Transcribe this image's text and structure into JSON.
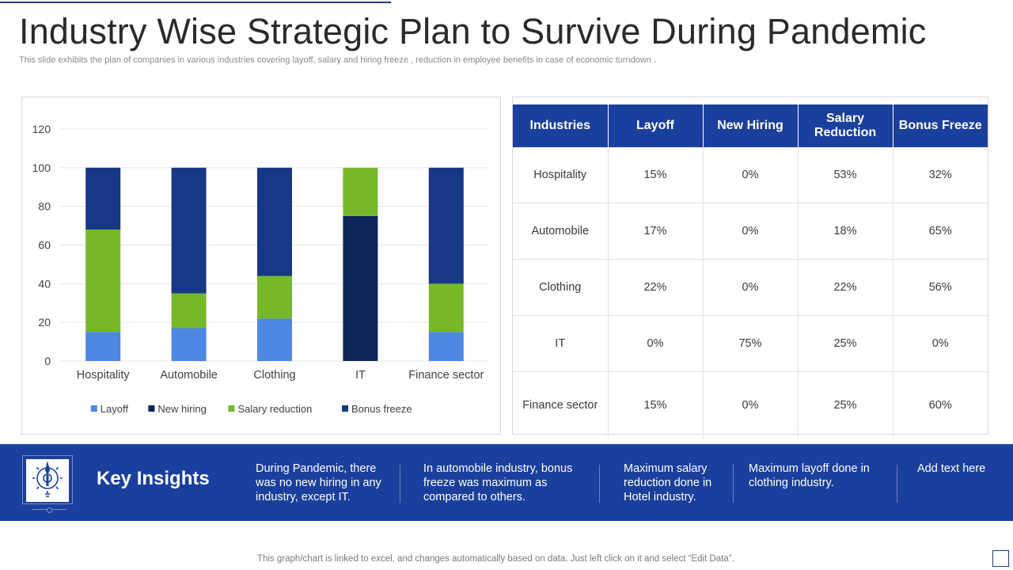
{
  "title": "Industry Wise Strategic Plan to Survive During Pandemic",
  "subtitle": "This slide exhibits the plan of companies in various industries covering layoff, salary and hiring freeze , reduction in employee benefits in case of economic turndown .",
  "chart_data": {
    "type": "bar",
    "stacked": true,
    "categories": [
      "Hospitality",
      "Automobile",
      "Clothing",
      "IT",
      "Finance sector"
    ],
    "series": [
      {
        "name": "Layoff",
        "values": [
          15,
          17,
          22,
          0,
          15
        ],
        "color": "#4e86e4"
      },
      {
        "name": "New hiring",
        "values": [
          0,
          0,
          0,
          75,
          0
        ],
        "color": "#0d2559"
      },
      {
        "name": "Salary reduction",
        "values": [
          53,
          18,
          22,
          25,
          25
        ],
        "color": "#76b82a"
      },
      {
        "name": "Bonus freeze",
        "values": [
          32,
          65,
          56,
          0,
          60
        ],
        "color": "#163886"
      }
    ],
    "ylim": [
      0,
      120
    ],
    "yticks": [
      0,
      20,
      40,
      60,
      80,
      100,
      120
    ],
    "grid": true,
    "legend": "bottom",
    "title": "",
    "xlabel": "",
    "ylabel": ""
  },
  "table": {
    "headers": [
      "Industries",
      "Layoff",
      "New Hiring",
      "Salary Reduction",
      "Bonus Freeze"
    ],
    "rows": [
      [
        "Hospitality",
        "15%",
        "0%",
        "53%",
        "32%"
      ],
      [
        "Automobile",
        "17%",
        "0%",
        "18%",
        "65%"
      ],
      [
        "Clothing",
        "22%",
        "0%",
        "22%",
        "56%"
      ],
      [
        "IT",
        "0%",
        "75%",
        "25%",
        "0%"
      ],
      [
        "Finance sector",
        "15%",
        "0%",
        "25%",
        "60%"
      ]
    ]
  },
  "insights": {
    "label": "Key Insights",
    "icon": "strategy-gear-icon",
    "items": [
      "During Pandemic, there was no new hiring in any industry, except IT.",
      "In automobile industry, bonus freeze was maximum as compared to others.",
      "Maximum salary reduction done in Hotel industry.",
      "Maximum layoff done in clothing industry.",
      "Add text here"
    ]
  },
  "footer": "This graph/chart is linked to excel,  and changes automatically based on data. Just left click on it and select “Edit Data”.",
  "colors": {
    "brand": "#1b3f9c",
    "band": "#1b3f9c"
  }
}
